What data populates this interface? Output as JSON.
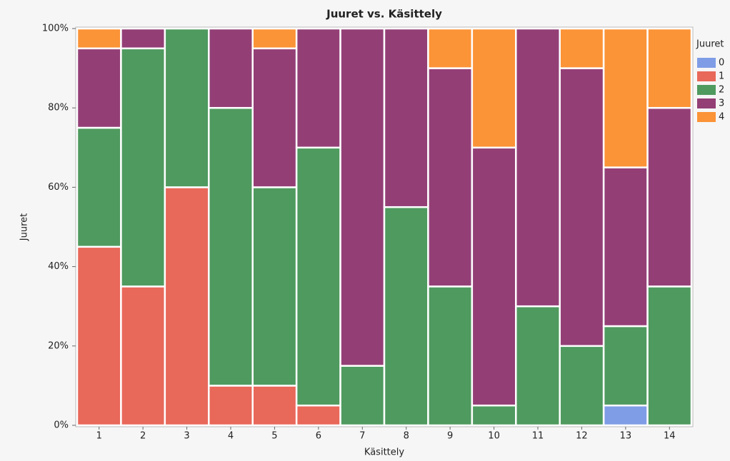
{
  "chart_data": {
    "type": "stacked_bar_percent",
    "title": "Juuret vs. Käsittely",
    "x_label": "Käsittely",
    "y_label": "Juuret",
    "legend_title": "Juuret",
    "categories": [
      "1",
      "2",
      "3",
      "4",
      "5",
      "6",
      "7",
      "8",
      "9",
      "10",
      "11",
      "12",
      "13",
      "14"
    ],
    "series": [
      {
        "name": "0",
        "color": "#7f9de6",
        "values": [
          0,
          0,
          0,
          0,
          0,
          0,
          0,
          0,
          0,
          0,
          0,
          0,
          5,
          0
        ]
      },
      {
        "name": "1",
        "color": "#e8685a",
        "values": [
          45,
          35,
          60,
          10,
          10,
          5,
          0,
          0,
          0,
          0,
          0,
          0,
          0,
          0
        ]
      },
      {
        "name": "2",
        "color": "#4f9a5f",
        "values": [
          30,
          60,
          40,
          70,
          50,
          65,
          15,
          55,
          35,
          5,
          30,
          20,
          20,
          35
        ]
      },
      {
        "name": "3",
        "color": "#933f76",
        "values": [
          20,
          5,
          0,
          20,
          35,
          30,
          85,
          45,
          55,
          65,
          70,
          70,
          40,
          45
        ]
      },
      {
        "name": "4",
        "color": "#fb9337",
        "values": [
          5,
          0,
          0,
          0,
          5,
          0,
          0,
          0,
          10,
          30,
          0,
          10,
          35,
          20
        ]
      }
    ],
    "ylim": [
      0,
      100
    ],
    "yticks": [
      {
        "value": 0,
        "label": "0%"
      },
      {
        "value": 20,
        "label": "20%"
      },
      {
        "value": 40,
        "label": "40%"
      },
      {
        "value": 60,
        "label": "60%"
      },
      {
        "value": 80,
        "label": "80%"
      },
      {
        "value": 100,
        "label": "100%"
      }
    ],
    "legend_position": "right"
  }
}
